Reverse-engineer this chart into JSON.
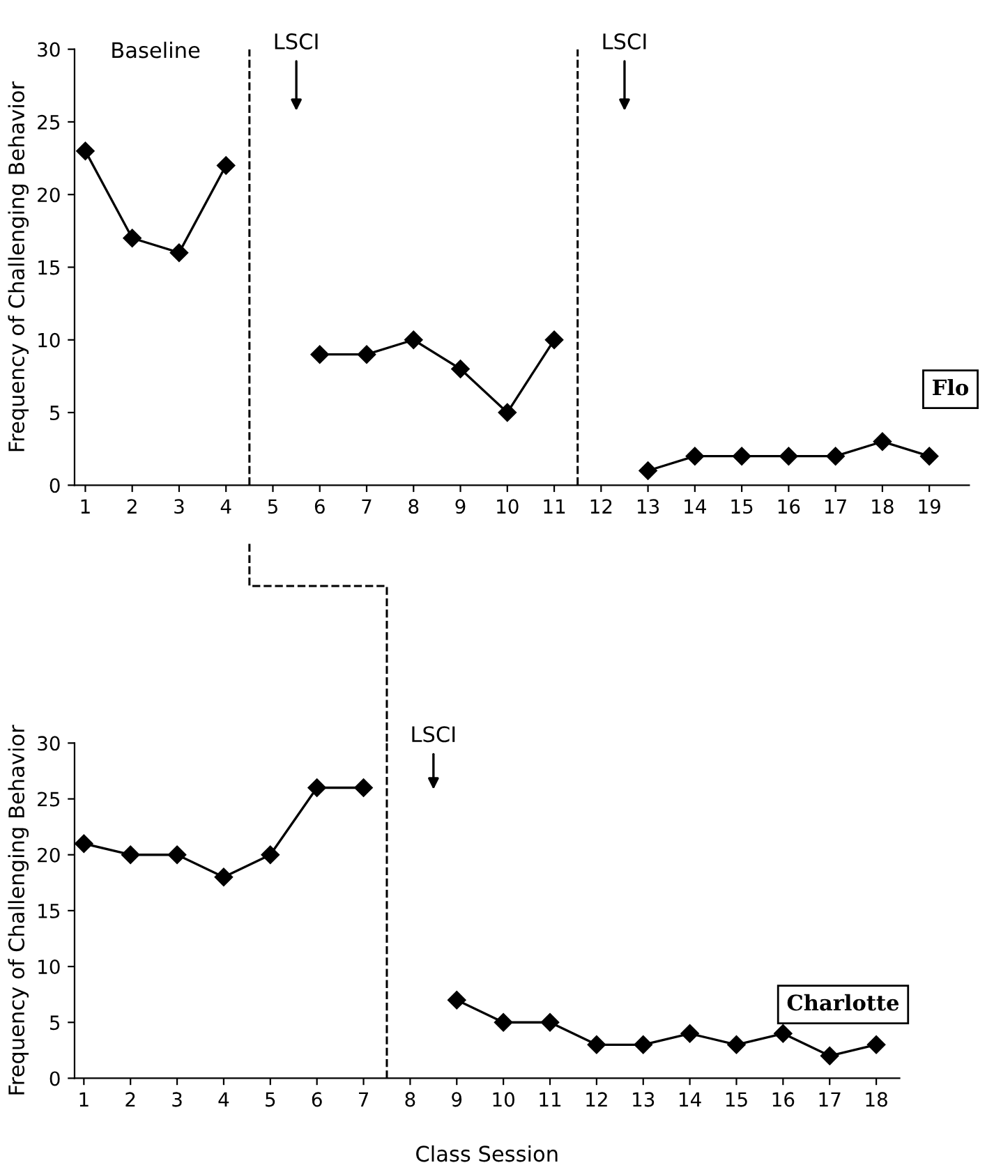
{
  "chart_data": [
    {
      "type": "line",
      "ylabel": "Frequency of Challenging Behavior",
      "xlim": [
        0.77,
        19.85
      ],
      "ylim": [
        0,
        30
      ],
      "xticks": [
        1,
        2,
        3,
        4,
        5,
        6,
        7,
        8,
        9,
        10,
        11,
        12,
        13,
        14,
        15,
        16,
        17,
        18,
        19
      ],
      "yticks": [
        0,
        5,
        10,
        15,
        20,
        25,
        30
      ],
      "marker": "diamond",
      "line_style": "solid",
      "grid": false,
      "series": [
        {
          "color": "#000000",
          "x": [
            1,
            2,
            3,
            4
          ],
          "values": [
            23,
            17,
            16,
            22
          ]
        },
        {
          "color": "#000000",
          "x": [
            6,
            7,
            8,
            9,
            10,
            11
          ],
          "values": [
            9,
            9,
            10,
            8,
            5,
            10
          ]
        },
        {
          "color": "#000000",
          "x": [
            13,
            14,
            15,
            16,
            17,
            18,
            19
          ],
          "values": [
            1,
            2,
            2,
            2,
            2,
            3,
            2
          ]
        }
      ],
      "ref_lines": [
        {
          "axis": "x",
          "value": 4.5,
          "line_style": "dashed",
          "color": "#000000"
        },
        {
          "axis": "x",
          "value": 11.5,
          "line_style": "dashed",
          "color": "#000000"
        }
      ],
      "annotations": [
        "Baseline",
        "LSCI",
        "LSCI",
        "Flo"
      ]
    },
    {
      "type": "line",
      "ylabel": "Frequency of Challenging Behavior",
      "xlabel": "Class Session",
      "xlim": [
        0.8,
        18.5
      ],
      "ylim": [
        0,
        30
      ],
      "xticks": [
        1,
        2,
        3,
        4,
        5,
        6,
        7,
        8,
        9,
        10,
        11,
        12,
        13,
        14,
        15,
        16,
        17,
        18
      ],
      "yticks": [
        0,
        5,
        10,
        15,
        20,
        25,
        30
      ],
      "marker": "diamond",
      "line_style": "solid",
      "grid": false,
      "series": [
        {
          "color": "#000000",
          "x": [
            1,
            2,
            3,
            4,
            5,
            6,
            7
          ],
          "values": [
            21,
            20,
            20,
            18,
            20,
            26,
            26
          ]
        },
        {
          "color": "#000000",
          "x": [
            9,
            10,
            11,
            12,
            13,
            14,
            15,
            16,
            17,
            18
          ],
          "values": [
            7,
            5,
            5,
            3,
            3,
            4,
            3,
            4,
            2,
            3
          ]
        }
      ],
      "ref_lines": [
        {
          "axis": "x",
          "value": 7.5,
          "line_style": "dashed",
          "color": "#000000"
        }
      ],
      "annotations": [
        "LSCI",
        "Charlotte"
      ]
    }
  ]
}
